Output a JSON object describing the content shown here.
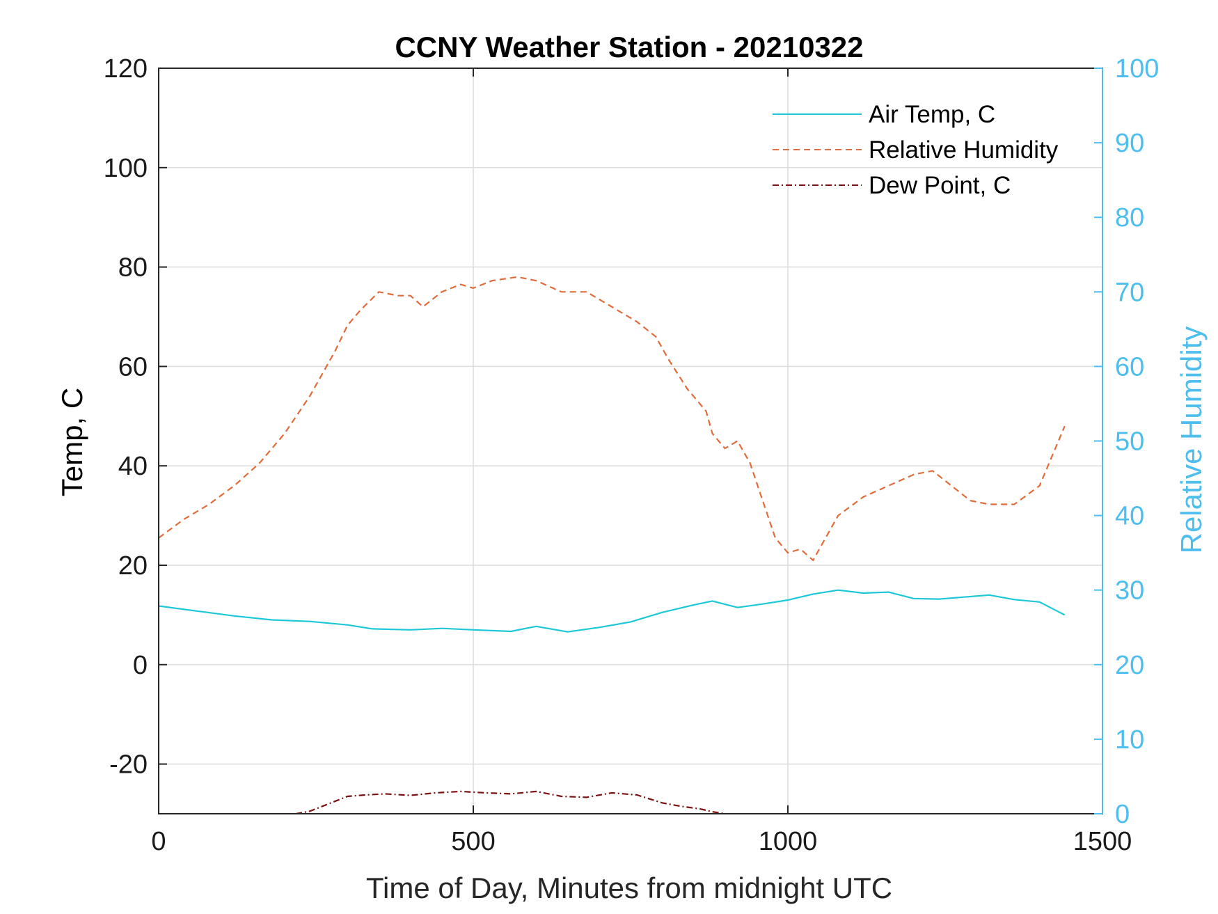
{
  "chart_data": {
    "type": "line",
    "title": "CCNY Weather Station - 20210322",
    "xlabel": "Time of Day, Minutes from midnight UTC",
    "ylabel_left": "Temp, C",
    "ylabel_right": "Relative Humidity",
    "xlim": [
      0,
      1500
    ],
    "ylim_left": [
      -30,
      120
    ],
    "ylim_right": [
      0,
      100
    ],
    "x_ticks": [
      "0",
      "500",
      "1000",
      "1500"
    ],
    "y_left_ticks": [
      "120",
      "100",
      "80",
      "60",
      "40",
      "20",
      "0",
      "-20"
    ],
    "y_right_ticks": [
      "100",
      "90",
      "80",
      "70",
      "60",
      "50",
      "40",
      "30",
      "20",
      "10",
      "0"
    ],
    "grid": true,
    "legend_position": "top-right",
    "colors": {
      "right_axis": "#4dbeee",
      "air_temp": "#1cc8d8",
      "humidity": "#e06c3c",
      "dew_point": "#7a1010",
      "grid": "#dcdcdc"
    },
    "series": [
      {
        "name": "Air Temp, C",
        "axis": "left",
        "line_style": "solid",
        "x": [
          0,
          60,
          120,
          180,
          240,
          300,
          340,
          400,
          450,
          500,
          560,
          600,
          650,
          700,
          750,
          800,
          850,
          880,
          920,
          960,
          1000,
          1040,
          1080,
          1120,
          1160,
          1200,
          1240,
          1280,
          1320,
          1360,
          1400,
          1440
        ],
        "values": [
          11.8,
          10.8,
          9.8,
          9.0,
          8.7,
          8.0,
          7.2,
          7.0,
          7.3,
          7.0,
          6.7,
          7.7,
          6.6,
          7.5,
          8.6,
          10.5,
          12.0,
          12.8,
          11.5,
          12.2,
          13.0,
          14.2,
          15.0,
          14.4,
          14.6,
          13.3,
          13.2,
          13.6,
          14.0,
          13.1,
          12.6,
          10.0
        ]
      },
      {
        "name": "Relative Humidity",
        "axis": "right",
        "line_style": "dashed",
        "x": [
          0,
          40,
          80,
          120,
          160,
          200,
          240,
          280,
          300,
          320,
          350,
          380,
          400,
          420,
          450,
          480,
          500,
          530,
          570,
          600,
          640,
          680,
          720,
          760,
          790,
          810,
          840,
          870,
          880,
          900,
          920,
          940,
          960,
          980,
          1000,
          1020,
          1040,
          1060,
          1080,
          1120,
          1160,
          1200,
          1230,
          1260,
          1290,
          1320,
          1360,
          1400,
          1440
        ],
        "values": [
          37,
          39.5,
          41.5,
          44,
          47,
          51,
          56,
          62,
          65.5,
          67.5,
          70,
          69.5,
          69.5,
          68,
          70,
          71,
          70.5,
          71.5,
          72,
          71.5,
          70,
          70,
          68,
          66,
          64,
          61,
          57,
          54,
          51,
          49,
          50,
          47,
          42,
          37,
          35,
          35.5,
          34,
          37,
          40,
          42.5,
          44,
          45.5,
          46,
          44,
          42,
          41.5,
          41.5,
          44,
          52
        ]
      },
      {
        "name": "Dew Point, C",
        "axis": "left",
        "line_style": "dash-dot",
        "x": [
          218,
          240,
          260,
          280,
          300,
          330,
          360,
          400,
          440,
          480,
          520,
          560,
          600,
          640,
          680,
          720,
          760,
          800,
          830,
          860,
          880,
          900
        ],
        "values": [
          -30,
          -29.5,
          -28.5,
          -27.5,
          -26.5,
          -26.2,
          -26.0,
          -26.3,
          -25.8,
          -25.5,
          -25.8,
          -26.0,
          -25.5,
          -26.5,
          -26.7,
          -25.8,
          -26.2,
          -27.8,
          -28.5,
          -29.0,
          -29.6,
          -30.0
        ]
      }
    ]
  }
}
